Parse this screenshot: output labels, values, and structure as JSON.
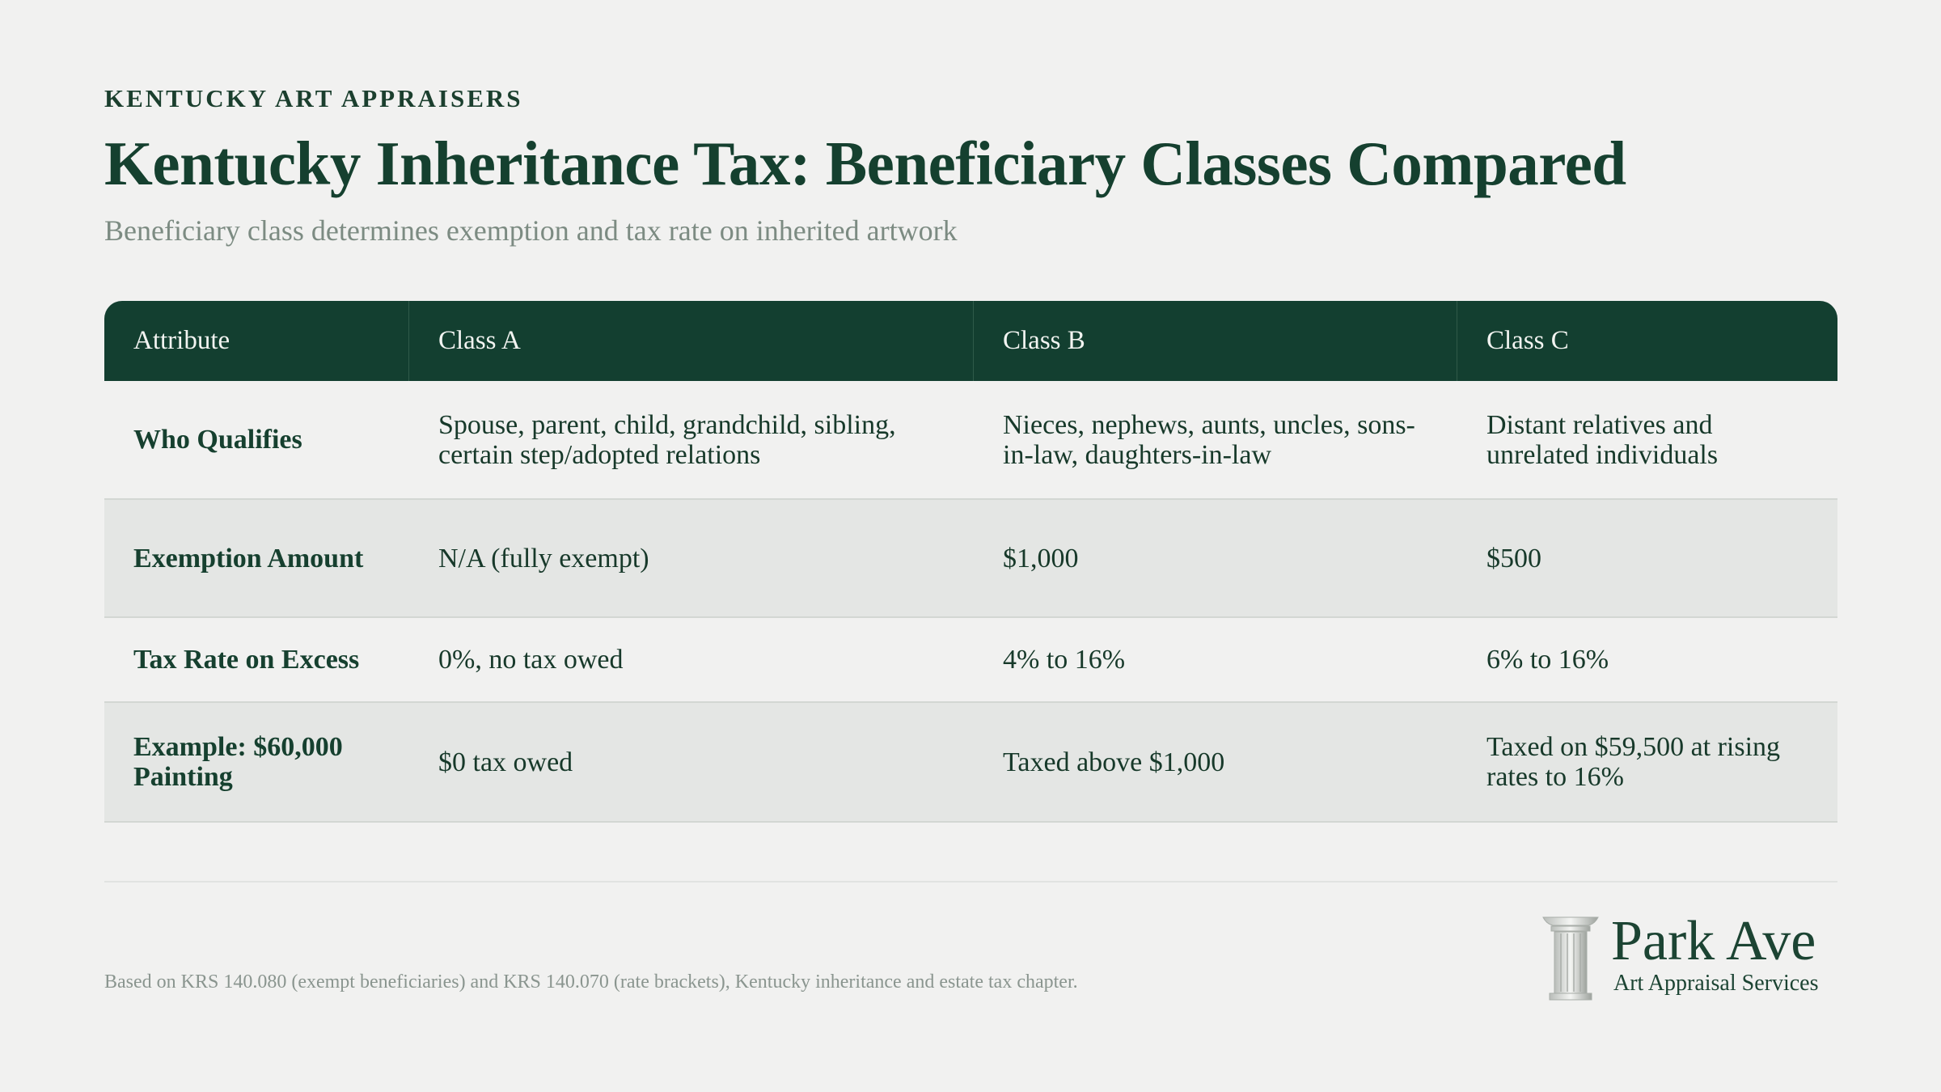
{
  "header": {
    "eyebrow": "KENTUCKY ART APPRAISERS",
    "title": "Kentucky Inheritance Tax: Beneficiary Classes Compared",
    "subtitle": "Beneficiary class determines exemption and tax rate on inherited artwork"
  },
  "table": {
    "columns": [
      "Attribute",
      "Class A",
      "Class B",
      "Class C"
    ],
    "rows": [
      {
        "attribute": "Who Qualifies",
        "class_a": "Spouse, parent, child, grandchild, sibling, certain step/adopted relations",
        "class_b": "Nieces, nephews, aunts, uncles, sons-in-law, daughters-in-law",
        "class_c": "Distant relatives and unrelated individuals"
      },
      {
        "attribute": "Exemption Amount",
        "class_a": "N/A (fully exempt)",
        "class_b": "$1,000",
        "class_c": "$500"
      },
      {
        "attribute": "Tax Rate on Excess",
        "class_a": "0%, no tax owed",
        "class_b": "4% to 16%",
        "class_c": "6% to 16%"
      },
      {
        "attribute": "Example: $60,000 Painting",
        "class_a": "$0 tax owed",
        "class_b": "Taxed above $1,000",
        "class_c": "Taxed on $59,500 at rising rates to 16%"
      }
    ]
  },
  "footer": {
    "footnote": "Based on KRS 140.080 (exempt beneficiaries) and KRS 140.070 (rate brackets), Kentucky inheritance and estate tax chapter."
  },
  "logo": {
    "name": "Park Ave",
    "tagline": "Art Appraisal Services",
    "icon": "pillar-icon"
  },
  "colors": {
    "background": "#f1f1f0",
    "header_band": "#133f30",
    "text_primary": "#15402f",
    "text_muted": "#7c8b82",
    "alt_row": "#e4e6e4"
  }
}
